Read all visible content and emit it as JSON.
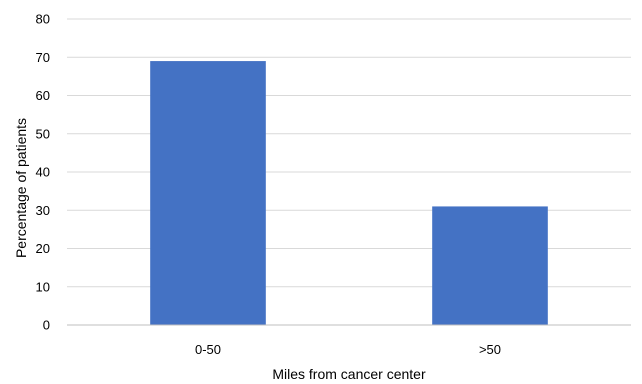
{
  "chart_data": {
    "type": "bar",
    "title": "",
    "xlabel": "Miles from cancer center",
    "ylabel": "Percentage of patients",
    "categories": [
      "0-50",
      ">50"
    ],
    "values": [
      69,
      31
    ],
    "ylim": [
      0,
      80
    ],
    "yticks": [
      0,
      10,
      20,
      30,
      40,
      50,
      60,
      70,
      80
    ],
    "grid": true,
    "legend": "none",
    "colors": {
      "bar": "#4472C4",
      "grid": "#D9D9D9",
      "axis": "#BFBFBF"
    }
  }
}
